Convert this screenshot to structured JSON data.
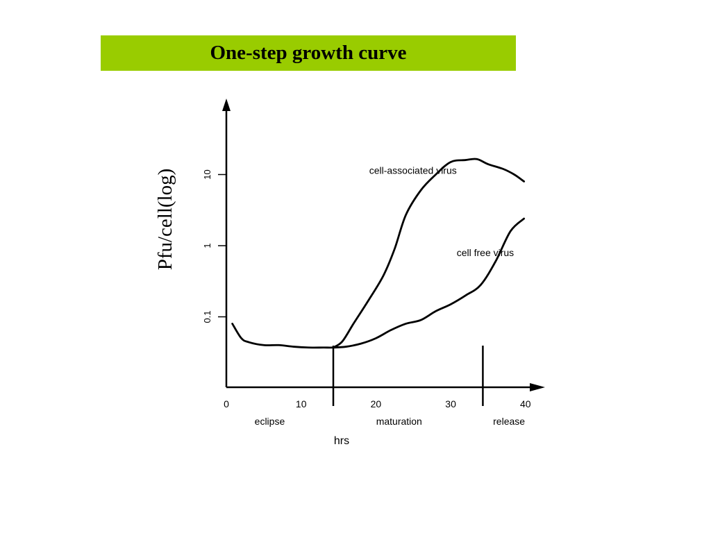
{
  "colors": {
    "title_bar": "#99cc00",
    "ink": "#000000",
    "background": "#ffffff"
  },
  "chart_data": {
    "type": "line",
    "title": "One-step growth curve",
    "xlabel": "hrs",
    "ylabel": "Pfu/cell(log)",
    "xlim": [
      0,
      42
    ],
    "ylim": [
      0.01,
      100
    ],
    "yscale": "log",
    "x_ticks": [
      "0",
      "10",
      "20",
      "30",
      "40"
    ],
    "y_ticks": [
      "0.1",
      "1",
      "10"
    ],
    "phases": [
      {
        "label": "eclipse",
        "x": 5.8
      },
      {
        "label": "maturation",
        "x": 23.1
      },
      {
        "label": "release",
        "x": 37.8
      }
    ],
    "phase_markers": [
      14.3,
      34.3
    ],
    "series": [
      {
        "name": "cell-associated virus",
        "label_at": [
          19.1,
          10
        ],
        "points": [
          [
            14.3,
            0.037
          ],
          [
            15.5,
            0.045
          ],
          [
            17,
            0.08
          ],
          [
            19,
            0.17
          ],
          [
            21,
            0.38
          ],
          [
            22.5,
            0.9
          ],
          [
            24,
            2.7
          ],
          [
            26,
            6
          ],
          [
            28,
            10
          ],
          [
            30,
            15
          ],
          [
            32,
            16
          ],
          [
            33.5,
            16.5
          ],
          [
            35,
            14
          ],
          [
            37,
            12
          ],
          [
            38.5,
            10
          ],
          [
            39.8,
            8
          ]
        ]
      },
      {
        "name": "cell free virus",
        "label_at": [
          30.8,
          0.7
        ],
        "points": [
          [
            0.8,
            0.08
          ],
          [
            2,
            0.05
          ],
          [
            3,
            0.044
          ],
          [
            5,
            0.04
          ],
          [
            7,
            0.04
          ],
          [
            9,
            0.038
          ],
          [
            11,
            0.037
          ],
          [
            13,
            0.037
          ],
          [
            14.3,
            0.037
          ],
          [
            16,
            0.038
          ],
          [
            18,
            0.042
          ],
          [
            20,
            0.05
          ],
          [
            22,
            0.065
          ],
          [
            24,
            0.08
          ],
          [
            26,
            0.09
          ],
          [
            28,
            0.12
          ],
          [
            30,
            0.15
          ],
          [
            32,
            0.2
          ],
          [
            34,
            0.28
          ],
          [
            36,
            0.6
          ],
          [
            38,
            1.6
          ],
          [
            39.8,
            2.4
          ]
        ]
      }
    ]
  }
}
